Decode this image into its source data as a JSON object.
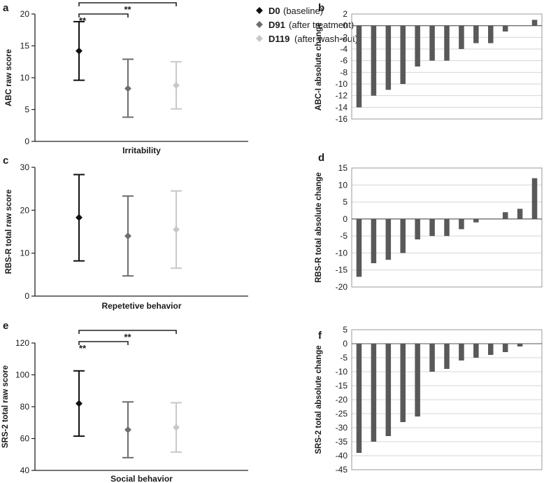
{
  "legend": [
    {
      "key": "D0",
      "desc": "(baseline)",
      "color": "#111111"
    },
    {
      "key": "D91",
      "desc": "(after treatment)",
      "color": "#6e6e6e"
    },
    {
      "key": "D119",
      "desc": "(after wash-out)",
      "color": "#c8c8c8"
    }
  ],
  "chart_data": [
    {
      "panel": "a",
      "type": "scatter",
      "ylabel": "ABC raw score",
      "xlabel": "Irritability",
      "ylim": [
        0,
        20
      ],
      "yticks": [
        0,
        5,
        10,
        15,
        20
      ],
      "series": [
        {
          "name": "D0",
          "mean": 14.2,
          "low": 9.6,
          "high": 18.8
        },
        {
          "name": "D91",
          "mean": 8.3,
          "low": 3.8,
          "high": 12.9
        },
        {
          "name": "D119",
          "mean": 8.8,
          "low": 5.1,
          "high": 12.5
        }
      ],
      "significance": [
        {
          "from": "D0",
          "to": "D91",
          "label": "**"
        },
        {
          "from": "D0",
          "to": "D119",
          "label": "**"
        }
      ]
    },
    {
      "panel": "b",
      "type": "bar",
      "ylabel": "ABC-I absolute change",
      "ylim": [
        -16,
        2
      ],
      "yticks": [
        -16,
        -14,
        -12,
        -10,
        -8,
        -6,
        -4,
        -2,
        0,
        2
      ],
      "values": [
        -14,
        -12,
        -11,
        -10,
        -7,
        -6,
        -6,
        -4,
        -3,
        -3,
        -1,
        0,
        1
      ]
    },
    {
      "panel": "c",
      "type": "scatter",
      "ylabel": "RBS-R total raw score",
      "xlabel": "Repetetive behavior",
      "ylim": [
        0,
        30
      ],
      "yticks": [
        0,
        10,
        20,
        30
      ],
      "series": [
        {
          "name": "D0",
          "mean": 18.3,
          "low": 8.2,
          "high": 28.3
        },
        {
          "name": "D91",
          "mean": 14.0,
          "low": 4.7,
          "high": 23.3
        },
        {
          "name": "D119",
          "mean": 15.5,
          "low": 6.5,
          "high": 24.5
        }
      ],
      "significance": []
    },
    {
      "panel": "d",
      "type": "bar",
      "ylabel": "RBS-R total absolute change",
      "ylim": [
        -20,
        15
      ],
      "yticks": [
        -20,
        -15,
        -10,
        -5,
        0,
        5,
        10,
        15
      ],
      "values": [
        -17,
        -13,
        -12,
        -10,
        -6,
        -5,
        -5,
        -3,
        -1,
        0,
        2,
        3,
        12
      ]
    },
    {
      "panel": "e",
      "type": "scatter",
      "ylabel": "SRS-2 total raw score",
      "xlabel": "Social behavior",
      "ylim": [
        40,
        120
      ],
      "yticks": [
        40,
        60,
        80,
        100,
        120
      ],
      "series": [
        {
          "name": "D0",
          "mean": 82,
          "low": 61.5,
          "high": 102.5
        },
        {
          "name": "D91",
          "mean": 65.5,
          "low": 48,
          "high": 83
        },
        {
          "name": "D119",
          "mean": 67,
          "low": 51.5,
          "high": 82.5
        }
      ],
      "significance": [
        {
          "from": "D0",
          "to": "D91",
          "label": "**"
        },
        {
          "from": "D0",
          "to": "D119",
          "label": "**"
        }
      ]
    },
    {
      "panel": "f",
      "type": "bar",
      "ylabel": "SRS-2 total absolute change",
      "ylim": [
        -45,
        5
      ],
      "yticks": [
        -45,
        -40,
        -35,
        -30,
        -25,
        -20,
        -15,
        -10,
        -5,
        0,
        5
      ],
      "values": [
        -39,
        -35,
        -33,
        -28,
        -26,
        -10,
        -9,
        -6,
        -5,
        -4,
        -3,
        -1
      ]
    }
  ]
}
